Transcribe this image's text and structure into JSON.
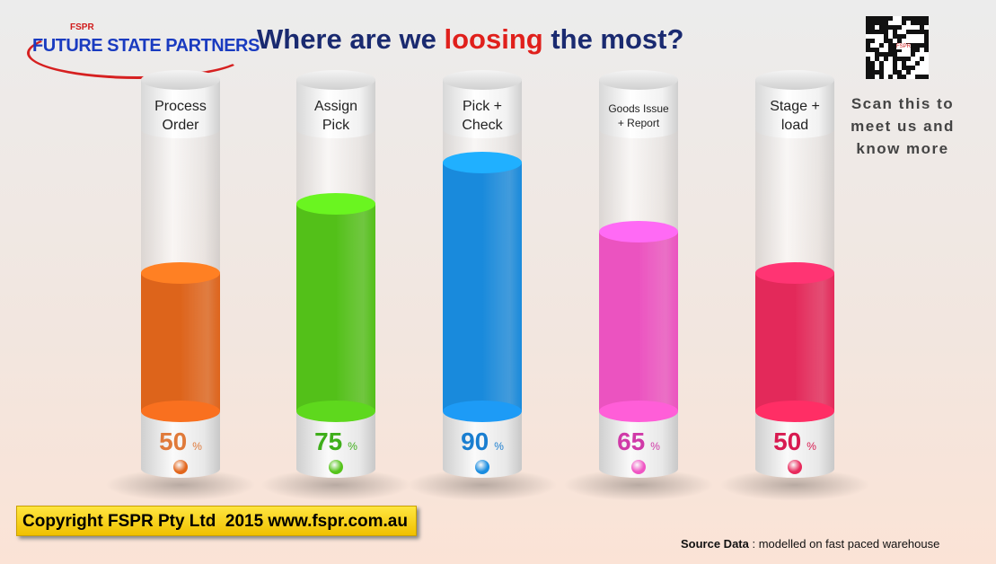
{
  "header": {
    "logo_small": "FSPR",
    "logo_name": "FUTURE STATE PARTNERS",
    "qr_label": "FSPR",
    "scan_text": "Scan this to meet us and know more"
  },
  "chart_data": {
    "type": "tube",
    "title_parts": [
      "Where are we ",
      "loosing",
      " the most?"
    ],
    "categories": [
      "Process Order",
      "Assign Pick",
      "Pick + Check",
      "Goods Issue + Report",
      "Stage + load"
    ],
    "values": [
      50,
      75,
      90,
      65,
      50
    ],
    "value_unit": "%",
    "colors": [
      "#e2661c",
      "#55c41a",
      "#1a8de0",
      "#f055c4",
      "#e82a5c"
    ],
    "label_colors": [
      "#e07a3a",
      "#3fae1a",
      "#1a7ed0",
      "#d03aa8",
      "#d81a50"
    ],
    "ylim": [
      0,
      100
    ]
  },
  "footer": {
    "copyright": "Copyright FSPR Pty Ltd  2015 www.fspr.com.au",
    "source_label": "Source Data",
    "source_text": ": modelled on fast paced warehouse"
  }
}
